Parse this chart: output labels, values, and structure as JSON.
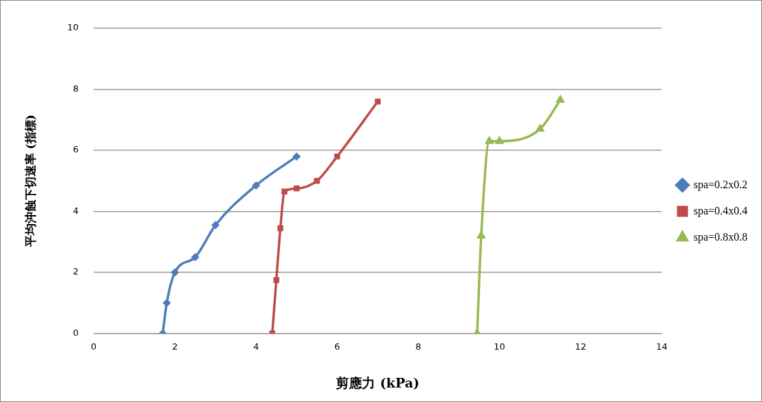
{
  "chart_data": {
    "type": "line",
    "xlabel": "剪應力 (kPa)",
    "ylabel": "平均沖蝕下切速率 (指標)",
    "xlim": [
      0,
      14
    ],
    "xticks": [
      0,
      2,
      4,
      6,
      8,
      10,
      12,
      14
    ],
    "ylim": [
      0,
      10
    ],
    "yticks": [
      0,
      2,
      4,
      6,
      8,
      10
    ],
    "grid": "y",
    "legend": "right",
    "line_style": "solid",
    "series": [
      {
        "name": "spa=0.2x0.2",
        "color": "#4a7ebb",
        "marker": "diamond",
        "x": [
          1.7,
          1.8,
          2.0,
          2.5,
          3.0,
          4.0,
          5.0
        ],
        "values": [
          0,
          1.0,
          2.0,
          2.5,
          3.55,
          4.85,
          5.8
        ]
      },
      {
        "name": "spa=0.4x0.4",
        "color": "#be4b48",
        "marker": "square",
        "x": [
          4.4,
          4.5,
          4.6,
          4.7,
          5.0,
          5.5,
          6.0,
          7.0
        ],
        "values": [
          0,
          1.75,
          3.45,
          4.65,
          4.75,
          5.0,
          5.8,
          7.6
        ]
      },
      {
        "name": "spa=0.8x0.8",
        "color": "#98b954",
        "marker": "triangle",
        "x": [
          9.45,
          9.55,
          9.75,
          10.0,
          11.0,
          11.5
        ],
        "values": [
          0,
          3.2,
          6.3,
          6.3,
          6.7,
          7.65
        ]
      }
    ]
  }
}
